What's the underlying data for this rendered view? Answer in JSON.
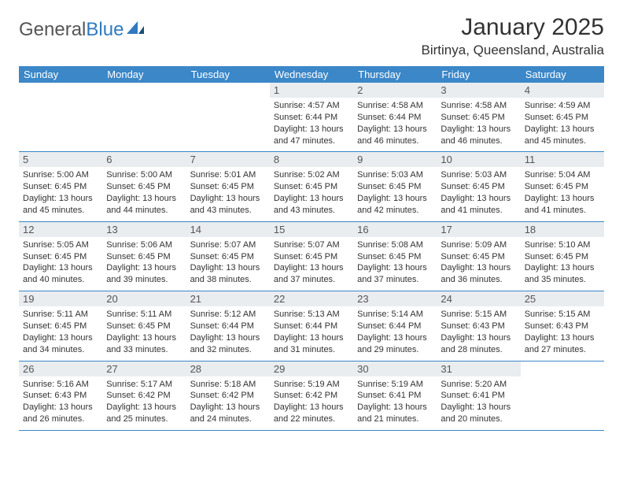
{
  "logo": {
    "word1": "General",
    "word2": "Blue"
  },
  "title": "January 2025",
  "location": "Birtinya, Queensland, Australia",
  "colors": {
    "header_bar": "#3b87c8",
    "daynum_bg": "#e9edf0",
    "text": "#333333",
    "logo_gray": "#555555",
    "logo_blue": "#2f7ac0"
  },
  "day_names": [
    "Sunday",
    "Monday",
    "Tuesday",
    "Wednesday",
    "Thursday",
    "Friday",
    "Saturday"
  ],
  "weeks": [
    [
      {
        "n": "",
        "sr": "",
        "ss": "",
        "dl1": "",
        "dl2": ""
      },
      {
        "n": "",
        "sr": "",
        "ss": "",
        "dl1": "",
        "dl2": ""
      },
      {
        "n": "",
        "sr": "",
        "ss": "",
        "dl1": "",
        "dl2": ""
      },
      {
        "n": "1",
        "sr": "Sunrise: 4:57 AM",
        "ss": "Sunset: 6:44 PM",
        "dl1": "Daylight: 13 hours",
        "dl2": "and 47 minutes."
      },
      {
        "n": "2",
        "sr": "Sunrise: 4:58 AM",
        "ss": "Sunset: 6:44 PM",
        "dl1": "Daylight: 13 hours",
        "dl2": "and 46 minutes."
      },
      {
        "n": "3",
        "sr": "Sunrise: 4:58 AM",
        "ss": "Sunset: 6:45 PM",
        "dl1": "Daylight: 13 hours",
        "dl2": "and 46 minutes."
      },
      {
        "n": "4",
        "sr": "Sunrise: 4:59 AM",
        "ss": "Sunset: 6:45 PM",
        "dl1": "Daylight: 13 hours",
        "dl2": "and 45 minutes."
      }
    ],
    [
      {
        "n": "5",
        "sr": "Sunrise: 5:00 AM",
        "ss": "Sunset: 6:45 PM",
        "dl1": "Daylight: 13 hours",
        "dl2": "and 45 minutes."
      },
      {
        "n": "6",
        "sr": "Sunrise: 5:00 AM",
        "ss": "Sunset: 6:45 PM",
        "dl1": "Daylight: 13 hours",
        "dl2": "and 44 minutes."
      },
      {
        "n": "7",
        "sr": "Sunrise: 5:01 AM",
        "ss": "Sunset: 6:45 PM",
        "dl1": "Daylight: 13 hours",
        "dl2": "and 43 minutes."
      },
      {
        "n": "8",
        "sr": "Sunrise: 5:02 AM",
        "ss": "Sunset: 6:45 PM",
        "dl1": "Daylight: 13 hours",
        "dl2": "and 43 minutes."
      },
      {
        "n": "9",
        "sr": "Sunrise: 5:03 AM",
        "ss": "Sunset: 6:45 PM",
        "dl1": "Daylight: 13 hours",
        "dl2": "and 42 minutes."
      },
      {
        "n": "10",
        "sr": "Sunrise: 5:03 AM",
        "ss": "Sunset: 6:45 PM",
        "dl1": "Daylight: 13 hours",
        "dl2": "and 41 minutes."
      },
      {
        "n": "11",
        "sr": "Sunrise: 5:04 AM",
        "ss": "Sunset: 6:45 PM",
        "dl1": "Daylight: 13 hours",
        "dl2": "and 41 minutes."
      }
    ],
    [
      {
        "n": "12",
        "sr": "Sunrise: 5:05 AM",
        "ss": "Sunset: 6:45 PM",
        "dl1": "Daylight: 13 hours",
        "dl2": "and 40 minutes."
      },
      {
        "n": "13",
        "sr": "Sunrise: 5:06 AM",
        "ss": "Sunset: 6:45 PM",
        "dl1": "Daylight: 13 hours",
        "dl2": "and 39 minutes."
      },
      {
        "n": "14",
        "sr": "Sunrise: 5:07 AM",
        "ss": "Sunset: 6:45 PM",
        "dl1": "Daylight: 13 hours",
        "dl2": "and 38 minutes."
      },
      {
        "n": "15",
        "sr": "Sunrise: 5:07 AM",
        "ss": "Sunset: 6:45 PM",
        "dl1": "Daylight: 13 hours",
        "dl2": "and 37 minutes."
      },
      {
        "n": "16",
        "sr": "Sunrise: 5:08 AM",
        "ss": "Sunset: 6:45 PM",
        "dl1": "Daylight: 13 hours",
        "dl2": "and 37 minutes."
      },
      {
        "n": "17",
        "sr": "Sunrise: 5:09 AM",
        "ss": "Sunset: 6:45 PM",
        "dl1": "Daylight: 13 hours",
        "dl2": "and 36 minutes."
      },
      {
        "n": "18",
        "sr": "Sunrise: 5:10 AM",
        "ss": "Sunset: 6:45 PM",
        "dl1": "Daylight: 13 hours",
        "dl2": "and 35 minutes."
      }
    ],
    [
      {
        "n": "19",
        "sr": "Sunrise: 5:11 AM",
        "ss": "Sunset: 6:45 PM",
        "dl1": "Daylight: 13 hours",
        "dl2": "and 34 minutes."
      },
      {
        "n": "20",
        "sr": "Sunrise: 5:11 AM",
        "ss": "Sunset: 6:45 PM",
        "dl1": "Daylight: 13 hours",
        "dl2": "and 33 minutes."
      },
      {
        "n": "21",
        "sr": "Sunrise: 5:12 AM",
        "ss": "Sunset: 6:44 PM",
        "dl1": "Daylight: 13 hours",
        "dl2": "and 32 minutes."
      },
      {
        "n": "22",
        "sr": "Sunrise: 5:13 AM",
        "ss": "Sunset: 6:44 PM",
        "dl1": "Daylight: 13 hours",
        "dl2": "and 31 minutes."
      },
      {
        "n": "23",
        "sr": "Sunrise: 5:14 AM",
        "ss": "Sunset: 6:44 PM",
        "dl1": "Daylight: 13 hours",
        "dl2": "and 29 minutes."
      },
      {
        "n": "24",
        "sr": "Sunrise: 5:15 AM",
        "ss": "Sunset: 6:43 PM",
        "dl1": "Daylight: 13 hours",
        "dl2": "and 28 minutes."
      },
      {
        "n": "25",
        "sr": "Sunrise: 5:15 AM",
        "ss": "Sunset: 6:43 PM",
        "dl1": "Daylight: 13 hours",
        "dl2": "and 27 minutes."
      }
    ],
    [
      {
        "n": "26",
        "sr": "Sunrise: 5:16 AM",
        "ss": "Sunset: 6:43 PM",
        "dl1": "Daylight: 13 hours",
        "dl2": "and 26 minutes."
      },
      {
        "n": "27",
        "sr": "Sunrise: 5:17 AM",
        "ss": "Sunset: 6:42 PM",
        "dl1": "Daylight: 13 hours",
        "dl2": "and 25 minutes."
      },
      {
        "n": "28",
        "sr": "Sunrise: 5:18 AM",
        "ss": "Sunset: 6:42 PM",
        "dl1": "Daylight: 13 hours",
        "dl2": "and 24 minutes."
      },
      {
        "n": "29",
        "sr": "Sunrise: 5:19 AM",
        "ss": "Sunset: 6:42 PM",
        "dl1": "Daylight: 13 hours",
        "dl2": "and 22 minutes."
      },
      {
        "n": "30",
        "sr": "Sunrise: 5:19 AM",
        "ss": "Sunset: 6:41 PM",
        "dl1": "Daylight: 13 hours",
        "dl2": "and 21 minutes."
      },
      {
        "n": "31",
        "sr": "Sunrise: 5:20 AM",
        "ss": "Sunset: 6:41 PM",
        "dl1": "Daylight: 13 hours",
        "dl2": "and 20 minutes."
      },
      {
        "n": "",
        "sr": "",
        "ss": "",
        "dl1": "",
        "dl2": ""
      }
    ]
  ]
}
